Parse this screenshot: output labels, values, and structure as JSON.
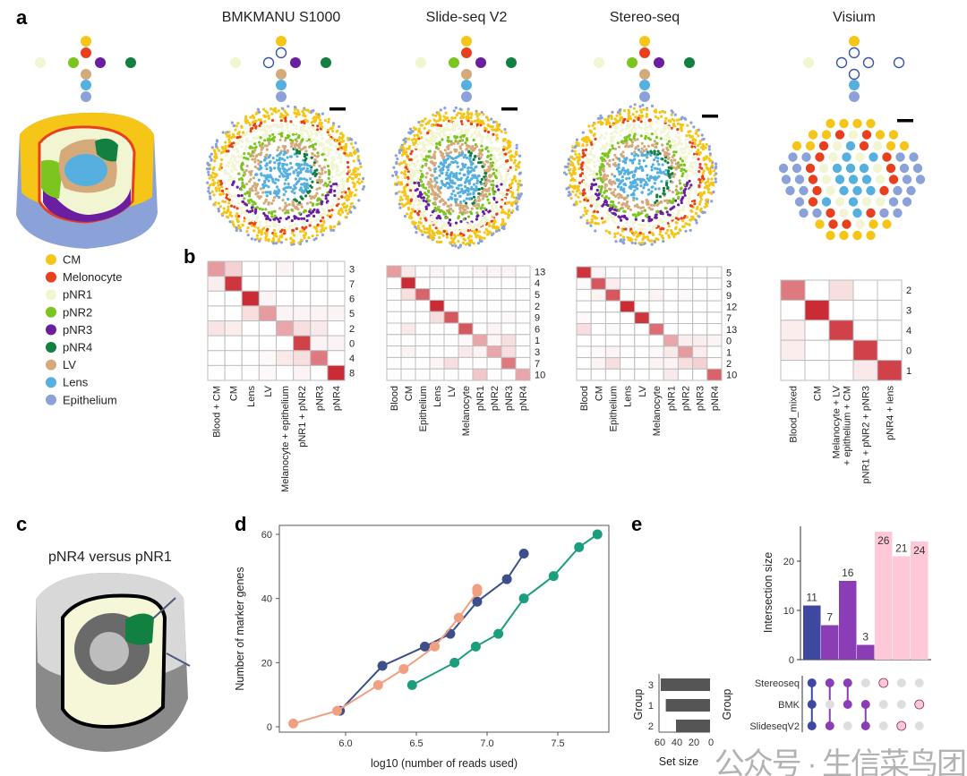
{
  "panel_labels": {
    "a": "a",
    "b": "b",
    "c": "c",
    "d": "d",
    "e": "e"
  },
  "colors": {
    "CM": "#f5c518",
    "Melonocyte": "#e8401c",
    "pNR1": "#f2f5d2",
    "pNR2": "#7cc520",
    "pNR3": "#6a1fa0",
    "pNR4": "#128040",
    "LV": "#d4aa7a",
    "Lens": "#55b0e0",
    "Epithelium": "#8aa2d8",
    "heat_max": "#c8202a",
    "open_ring": "#3a57a0"
  },
  "legend": [
    "CM",
    "Melonocyte",
    "pNR1",
    "pNR2",
    "pNR3",
    "pNR4",
    "LV",
    "Lens",
    "Epithelium"
  ],
  "platforms": [
    {
      "title": "",
      "open": []
    },
    {
      "title": "BMKMANU S1000",
      "open": [
        "Melonocyte",
        "pNR2"
      ]
    },
    {
      "title": "Slide-seq V2",
      "open": []
    },
    {
      "title": "Stereo-seq",
      "open": []
    },
    {
      "title": "Visium",
      "open": [
        "Melonocyte",
        "pNR2",
        "pNR3",
        "pNR4",
        "LV"
      ]
    }
  ],
  "panel_c_title": "pNR4 versus pNR1",
  "watermark": "公众号 · 生信菜鸟团",
  "chart_data": [
    {
      "type": "heatmap",
      "panel": "b",
      "platform": "BMKMANU S1000",
      "columns": [
        "Blood + CM",
        "CM",
        "Lens",
        "LV",
        "Melanocyte + epithelium",
        "pNR1 + pNR2",
        "pNR3",
        "pNR4"
      ],
      "rows": [
        "3",
        "7",
        "6",
        "5",
        "2",
        "0",
        "4",
        "8"
      ],
      "values": [
        [
          0.45,
          0.2,
          0,
          0,
          0.05,
          0,
          0,
          0
        ],
        [
          0.08,
          0.9,
          0,
          0,
          0,
          0,
          0,
          0
        ],
        [
          0,
          0,
          0.95,
          0.05,
          0,
          0,
          0,
          0
        ],
        [
          0,
          0,
          0.15,
          0.45,
          0.05,
          0.05,
          0.05,
          0.05
        ],
        [
          0.12,
          0.08,
          0,
          0,
          0.4,
          0.15,
          0.1,
          0
        ],
        [
          0,
          0,
          0,
          0,
          0,
          0.85,
          0.05,
          0.05
        ],
        [
          0,
          0,
          0,
          0.03,
          0.1,
          0.15,
          0.6,
          0
        ],
        [
          0,
          0,
          0,
          0.03,
          0,
          0.05,
          0,
          0.95
        ]
      ]
    },
    {
      "type": "heatmap",
      "panel": "b",
      "platform": "Slide-seq V2",
      "columns": [
        "Blood",
        "CM",
        "Epithelium",
        "Lens",
        "LV",
        "Melanocyte",
        "pNR1",
        "pNR2",
        "pNR3",
        "pNR4"
      ],
      "rows": [
        "13",
        "4",
        "5",
        "2",
        "9",
        "6",
        "1",
        "3",
        "7",
        "10"
      ],
      "values": [
        [
          0.45,
          0.1,
          0,
          0.05,
          0,
          0,
          0.05,
          0.05,
          0.05,
          0
        ],
        [
          0,
          0.95,
          0,
          0,
          0,
          0,
          0,
          0,
          0,
          0
        ],
        [
          0,
          0.15,
          0.7,
          0,
          0,
          0,
          0,
          0,
          0,
          0
        ],
        [
          0,
          0,
          0,
          0.95,
          0,
          0,
          0,
          0,
          0,
          0
        ],
        [
          0,
          0,
          0,
          0.15,
          0.75,
          0,
          0,
          0,
          0.03,
          0
        ],
        [
          0,
          0.1,
          0,
          0,
          0,
          0.75,
          0,
          0.05,
          0,
          0
        ],
        [
          0,
          0,
          0,
          0,
          0,
          0.03,
          0.4,
          0.05,
          0.15,
          0
        ],
        [
          0,
          0.05,
          0,
          0,
          0,
          0.1,
          0.05,
          0.4,
          0.15,
          0
        ],
        [
          0,
          0,
          0,
          0.05,
          0.15,
          0,
          0,
          0,
          0.6,
          0
        ],
        [
          0,
          0,
          0,
          0,
          0,
          0,
          0.25,
          0,
          0,
          0.4
        ]
      ]
    },
    {
      "type": "heatmap",
      "panel": "b",
      "platform": "Stereo-seq",
      "columns": [
        "Blood",
        "CM",
        "Epithelium",
        "Lens",
        "LV",
        "Melanocyte",
        "pNR1",
        "pNR2",
        "pNR3",
        "pNR4"
      ],
      "rows": [
        "5",
        "3",
        "9",
        "12",
        "7",
        "13",
        "0",
        "1",
        "2",
        "10"
      ],
      "values": [
        [
          0.9,
          0.05,
          0,
          0,
          0,
          0,
          0,
          0,
          0,
          0
        ],
        [
          0.03,
          0.75,
          0.08,
          0,
          0,
          0,
          0,
          0,
          0,
          0
        ],
        [
          0,
          0.05,
          0.75,
          0,
          0,
          0.05,
          0,
          0.03,
          0,
          0
        ],
        [
          0,
          0,
          0,
          0.95,
          0,
          0,
          0,
          0,
          0,
          0
        ],
        [
          0.03,
          0,
          0,
          0,
          0.9,
          0,
          0,
          0,
          0,
          0
        ],
        [
          0.15,
          0,
          0.03,
          0,
          0,
          0.65,
          0,
          0,
          0,
          0
        ],
        [
          0,
          0,
          0,
          0,
          0,
          0,
          0.4,
          0.08,
          0.08,
          0.05
        ],
        [
          0,
          0.03,
          0.05,
          0,
          0,
          0.03,
          0.1,
          0.45,
          0.08,
          0
        ],
        [
          0,
          0.05,
          0.15,
          0,
          0,
          0.05,
          0.05,
          0.15,
          0.2,
          0
        ],
        [
          0,
          0,
          0,
          0,
          0,
          0,
          0.1,
          0,
          0,
          0.7
        ]
      ]
    },
    {
      "type": "heatmap",
      "panel": "b",
      "platform": "Visium",
      "columns": [
        "Blood_mixed",
        "CM",
        "Melanocyte + LV\n+ epithelium + CM",
        "pNR1 + pNR2 + pNR3",
        "pNR4 + lens"
      ],
      "rows": [
        "2",
        "3",
        "4",
        "0",
        "1"
      ],
      "values": [
        [
          0.6,
          0,
          0.15,
          0,
          0
        ],
        [
          0,
          0.95,
          0,
          0,
          0
        ],
        [
          0.08,
          0,
          0.85,
          0,
          0
        ],
        [
          0.08,
          0,
          0,
          0.85,
          0
        ],
        [
          0,
          0,
          0,
          0.1,
          0.85
        ]
      ]
    },
    {
      "type": "line",
      "panel": "d",
      "xlabel": "log10 (number of reads used)",
      "ylabel": "Number of marker genes",
      "xlim": [
        5.55,
        7.85
      ],
      "ylim": [
        -2,
        62
      ],
      "xticks": [
        6.0,
        6.5,
        7.0,
        7.5
      ],
      "yticks": [
        0,
        20,
        40,
        60
      ],
      "xtick_labels": [
        "6.0",
        "6.5",
        "7.0",
        "7.5"
      ],
      "ytick_labels": [
        "0",
        "20",
        "40",
        "60"
      ],
      "series": [
        {
          "color": "#3d4f8a",
          "x": [
            5.96,
            6.26,
            6.56,
            6.74,
            6.93,
            7.14,
            7.26
          ],
          "y": [
            5,
            19,
            25,
            29,
            39,
            46,
            54
          ]
        },
        {
          "color": "#f0a080",
          "x": [
            5.63,
            5.94,
            6.23,
            6.41,
            6.63,
            6.8,
            6.93,
            6.93
          ],
          "y": [
            1,
            5,
            13,
            18,
            25,
            34,
            42,
            43
          ]
        },
        {
          "color": "#1a9e7e",
          "x": [
            6.47,
            6.77,
            6.92,
            7.08,
            7.26,
            7.47,
            7.65,
            7.78
          ],
          "y": [
            13,
            20,
            25,
            29,
            40,
            47,
            56,
            60
          ]
        }
      ]
    },
    {
      "type": "bar",
      "panel": "e",
      "subtype": "upset",
      "ylabel": "Intersection size",
      "yticks": [
        0,
        10,
        20
      ],
      "ytick_labels": [
        "0",
        "10",
        "20"
      ],
      "ylim": [
        0,
        27
      ],
      "values": [
        11,
        7,
        16,
        3,
        26,
        21,
        24
      ],
      "bar_colors": [
        "#3f48a0",
        "#8b3db5",
        "#8b3db5",
        "#8b3db5",
        "#ffc8d8",
        "#ffc8d8",
        "#ffc8d8"
      ],
      "sets": [
        "Stereoseq",
        "BMK",
        "SlideseqV2"
      ],
      "membership": [
        [
          "Stereoseq",
          "BMK",
          "SlideseqV2"
        ],
        [
          "Stereoseq",
          "SlideseqV2"
        ],
        [
          "Stereoseq",
          "BMK"
        ],
        [
          "BMK",
          "SlideseqV2"
        ],
        [
          "Stereoseq"
        ],
        [
          "SlideseqV2"
        ],
        [
          "BMK"
        ]
      ],
      "matrix_ylabel": "Group",
      "set_size": {
        "groups": [
          "3",
          "1",
          "2"
        ],
        "values": [
          58,
          52,
          40
        ],
        "xlabel": "Set size",
        "ylabel": "Group",
        "xticks": [
          "60",
          "40",
          "20",
          "0"
        ]
      }
    }
  ]
}
